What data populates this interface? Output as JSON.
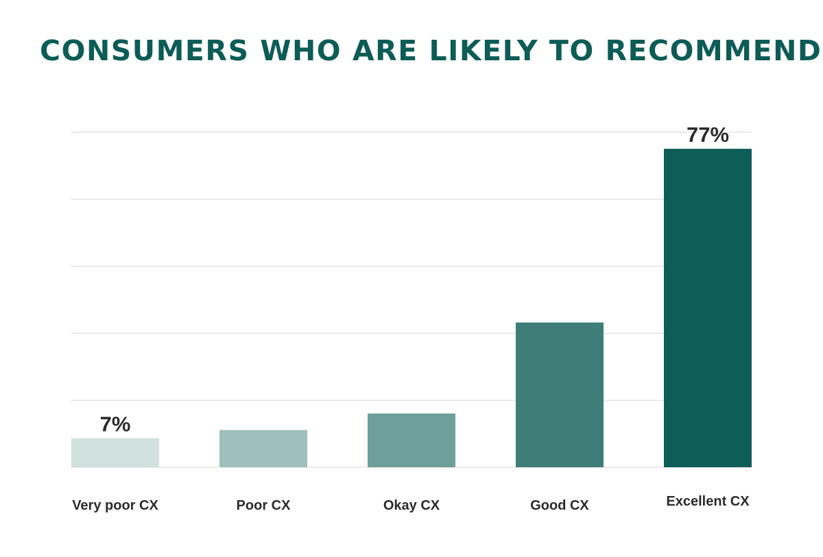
{
  "chart_data": {
    "type": "bar",
    "title": "CONSUMERS WHO ARE LIKELY TO RECOMMEND…",
    "categories": [
      "Very poor CX",
      "Poor CX",
      "Okay CX",
      "Good CX",
      "Excellent CX"
    ],
    "values": [
      7,
      9,
      13,
      35,
      77
    ],
    "data_labels": [
      "7%",
      "",
      "",
      "",
      "77%"
    ],
    "ylim": [
      0,
      81
    ],
    "gridlines": 5,
    "grid": true,
    "legend": "none",
    "bar_colors": [
      "#d0e0dd",
      "#9ebfbb",
      "#6e9f9b",
      "#3e7d78",
      "#0e5d57"
    ],
    "title_color": "#0d5c56"
  }
}
